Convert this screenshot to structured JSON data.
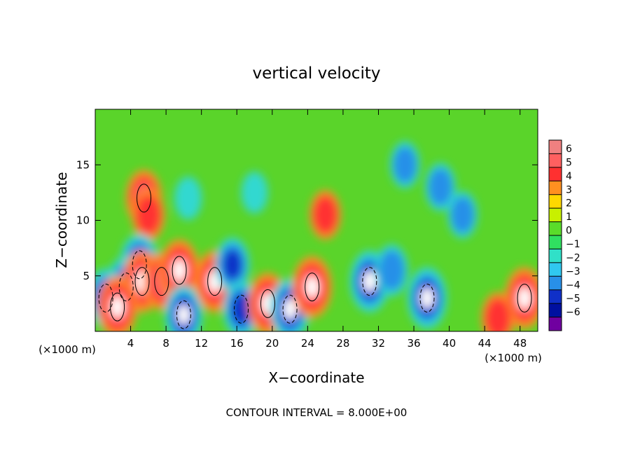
{
  "chart_data": {
    "type": "heatmap",
    "title": "vertical velocity",
    "xlabel": "X−coordinate",
    "ylabel": "Z−coordinate",
    "x_unit_left": "(×1000 m)",
    "x_unit_right": "(×1000 m)",
    "xlim": [
      0,
      50
    ],
    "ylim": [
      0,
      20
    ],
    "x_ticks": [
      4,
      8,
      12,
      16,
      20,
      24,
      28,
      32,
      36,
      40,
      44,
      48
    ],
    "y_ticks": [
      5,
      10,
      15
    ],
    "footer": "CONTOUR INTERVAL = 8.000E+00",
    "colorbar": {
      "levels": [
        "6",
        "5",
        "4",
        "3",
        "2",
        "1",
        "0",
        "−1",
        "−2",
        "−3",
        "−4",
        "−5",
        "−6"
      ],
      "colors": [
        "#f08080",
        "#ff6060",
        "#ff3030",
        "#ff9020",
        "#ffd800",
        "#c8f000",
        "#5adc2a",
        "#30e060",
        "#30e0c8",
        "#30c8f0",
        "#2890e8",
        "#1030c8",
        "#0010a0",
        "#7000a0"
      ]
    },
    "features": [
      {
        "x": 5.5,
        "z": 12.0,
        "w": 0.8
      },
      {
        "x": 6.0,
        "z": 10.5,
        "w": 0.6
      },
      {
        "x": 5.0,
        "z": 6.0,
        "w": -1.0
      },
      {
        "x": 3.5,
        "z": 4.0,
        "w": -1.0
      },
      {
        "x": 1.2,
        "z": 3.0,
        "w": -0.9
      },
      {
        "x": 5.3,
        "z": 4.5,
        "w": 1.0
      },
      {
        "x": 2.5,
        "z": 2.2,
        "w": 1.0
      },
      {
        "x": 7.5,
        "z": 4.5,
        "w": 0.8
      },
      {
        "x": 9.5,
        "z": 5.5,
        "w": 1.0
      },
      {
        "x": 10.0,
        "z": 1.5,
        "w": -0.9
      },
      {
        "x": 13.5,
        "z": 4.5,
        "w": 1.0
      },
      {
        "x": 15.5,
        "z": 6.0,
        "w": -0.7
      },
      {
        "x": 16.5,
        "z": 2.0,
        "w": -0.8
      },
      {
        "x": 19.5,
        "z": 2.5,
        "w": 1.0
      },
      {
        "x": 22.0,
        "z": 2.0,
        "w": -1.0
      },
      {
        "x": 24.5,
        "z": 4.0,
        "w": 1.0
      },
      {
        "x": 26.0,
        "z": 10.5,
        "w": 0.5
      },
      {
        "x": 31.0,
        "z": 4.5,
        "w": -1.0
      },
      {
        "x": 33.5,
        "z": 5.5,
        "w": -0.6
      },
      {
        "x": 37.5,
        "z": 3.0,
        "w": -1.0
      },
      {
        "x": 35.0,
        "z": 15.0,
        "w": -0.4
      },
      {
        "x": 39.0,
        "z": 13.0,
        "w": -0.45
      },
      {
        "x": 41.5,
        "z": 10.5,
        "w": -0.4
      },
      {
        "x": 48.5,
        "z": 3.0,
        "w": 1.0
      },
      {
        "x": 45.5,
        "z": 1.2,
        "w": 0.6
      },
      {
        "x": 10.5,
        "z": 12.0,
        "w": -0.25
      },
      {
        "x": 18.0,
        "z": 12.5,
        "w": -0.2
      }
    ]
  }
}
